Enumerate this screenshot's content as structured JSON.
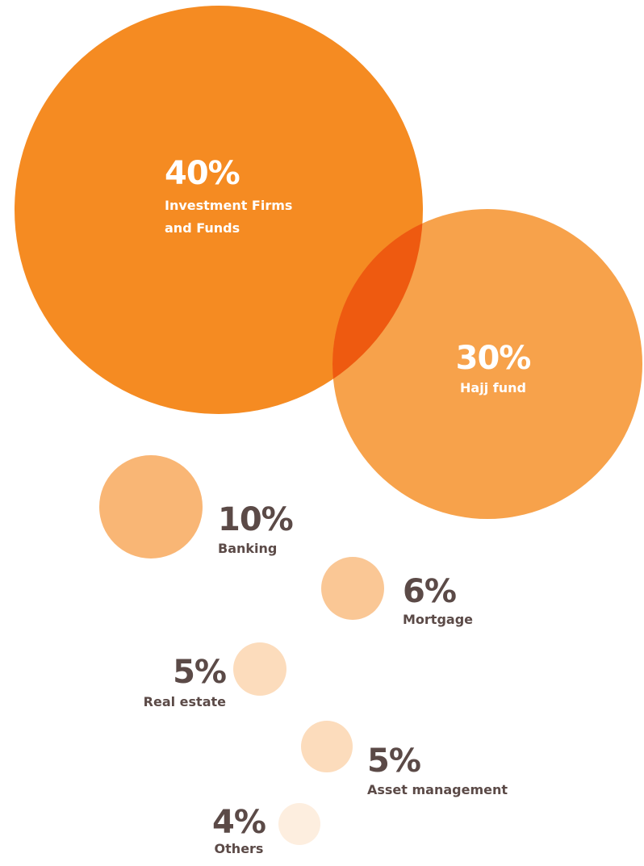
{
  "chart_data": {
    "type": "bubble",
    "title": "",
    "unit": "%",
    "colors": {
      "light_text": "#ffffff",
      "dark_text": "#5b4a47",
      "overlap": "#ee5a10"
    },
    "items": [
      {
        "label": "Investment Firms and Funds",
        "label_lines": [
          "Investment Firms",
          "and Funds"
        ],
        "value": 40,
        "value_label": "40%",
        "color": "#f58b22",
        "text_color": "light"
      },
      {
        "label": "Hajj fund",
        "label_lines": [
          "Hajj fund"
        ],
        "value": 30,
        "value_label": "30%",
        "color": "#f7a24b",
        "text_color": "light"
      },
      {
        "label": "Banking",
        "label_lines": [
          "Banking"
        ],
        "value": 10,
        "value_label": "10%",
        "color": "#f9b675",
        "text_color": "dark"
      },
      {
        "label": "Mortgage",
        "label_lines": [
          "Mortgage"
        ],
        "value": 6,
        "value_label": "6%",
        "color": "#fac795",
        "text_color": "dark"
      },
      {
        "label": "Real estate",
        "label_lines": [
          "Real estate"
        ],
        "value": 5,
        "value_label": "5%",
        "color": "#fcdcbc",
        "text_color": "dark"
      },
      {
        "label": "Asset management",
        "label_lines": [
          "Asset management"
        ],
        "value": 5,
        "value_label": "5%",
        "color": "#fcdcbc",
        "text_color": "dark"
      },
      {
        "label": "Others",
        "label_lines": [
          "Others"
        ],
        "value": 4,
        "value_label": "4%",
        "color": "#fdeedf",
        "text_color": "dark"
      }
    ]
  }
}
